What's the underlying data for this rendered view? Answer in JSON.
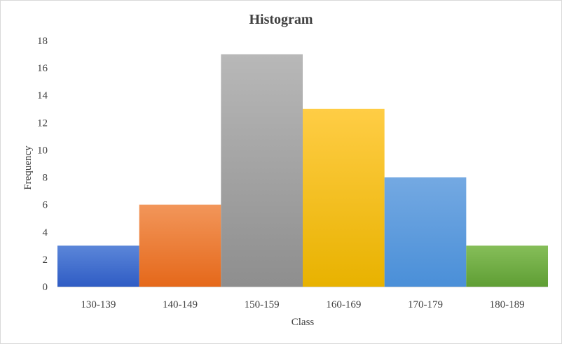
{
  "chart_data": {
    "type": "bar",
    "title": "Histogram",
    "xlabel": "Class",
    "ylabel": "Frequency",
    "categories": [
      "130-139",
      "140-149",
      "150-159",
      "160-169",
      "170-179",
      "180-189"
    ],
    "values": [
      3,
      6,
      17,
      13,
      8,
      3
    ],
    "ylim": [
      0,
      18
    ],
    "yticks": [
      0,
      2,
      4,
      6,
      8,
      10,
      12,
      14,
      16,
      18
    ],
    "grid": false,
    "legend": "none",
    "colors": [
      [
        "#5b86d9",
        "#2f5cc4"
      ],
      [
        "#f2965a",
        "#e5681a"
      ],
      [
        "#b8b8b8",
        "#8e8e8e"
      ],
      [
        "#ffcd45",
        "#e8b200"
      ],
      [
        "#74a9e2",
        "#4a8fd8"
      ],
      [
        "#86be59",
        "#5f9e34"
      ]
    ]
  }
}
